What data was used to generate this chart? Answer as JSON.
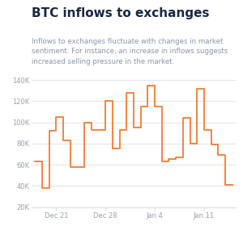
{
  "title": "BTC inflows to exchanges",
  "subtitle": "Inflows to exchanges fluctuate with changes in market\nsentiment. For instance, an increase in inflows suggests\nincreased selling pressure in the market.",
  "title_color": "#1a2744",
  "subtitle_color": "#8a95aa",
  "line_color": "#f47c30",
  "background_color": "#ffffff",
  "grid_color": "#d8dde6",
  "ylabel_color": "#9aa0ad",
  "ylim": [
    20000,
    148000
  ],
  "yticks": [
    20000,
    40000,
    60000,
    80000,
    100000,
    120000,
    140000
  ],
  "ytick_labels": [
    "20K",
    "40K",
    "60K",
    "80K",
    "100K",
    "120K",
    "140K"
  ],
  "x_tick_positions": [
    3,
    10,
    17,
    24
  ],
  "x_tick_labels": [
    "Dec 21",
    "Dec 28",
    "Jan 4",
    "Jan 11"
  ],
  "xlim": [
    -0.5,
    28.5
  ],
  "linewidth": 1.3,
  "title_fontsize": 11,
  "subtitle_fontsize": 6.2,
  "tick_fontsize": 6
}
